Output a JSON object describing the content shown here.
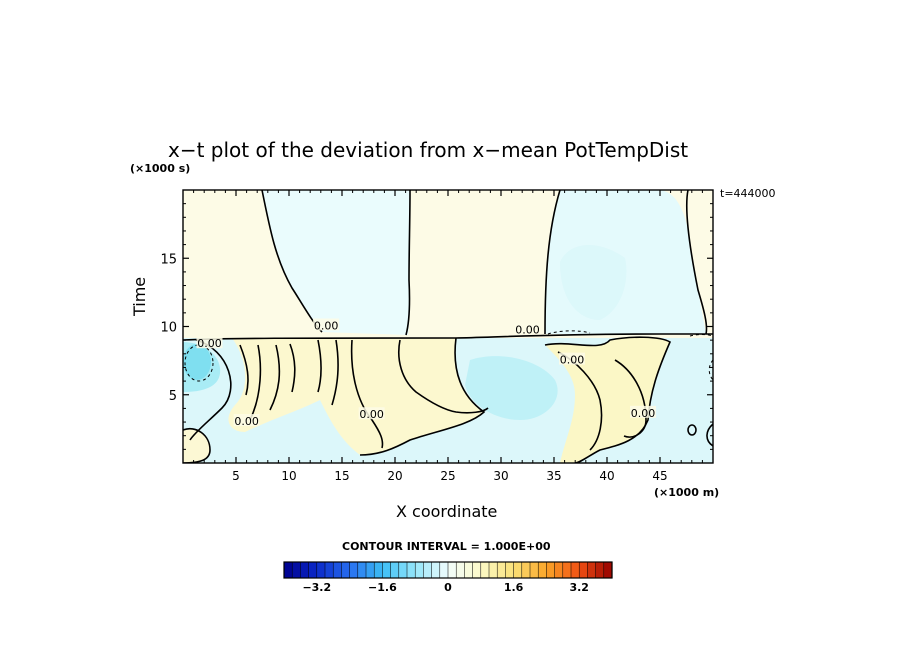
{
  "chart_data": {
    "type": "heatmap",
    "title": "x−t plot of the deviation from x−mean PotTempDist",
    "xlabel": "X coordinate",
    "ylabel": "Time",
    "x_unit_label": "(×1000 m)",
    "y_unit_label": "(×1000 s)",
    "timestamp": "t=444000",
    "xlim": [
      0,
      50
    ],
    "ylim": [
      0,
      20
    ],
    "x_ticks": [
      5,
      10,
      15,
      20,
      25,
      30,
      35,
      40,
      45
    ],
    "x_tick_labels": [
      "5",
      "10",
      "15",
      "20",
      "25",
      "30",
      "35",
      "40",
      "45"
    ],
    "y_ticks": [
      5,
      10,
      15
    ],
    "y_tick_labels": [
      "5",
      "10",
      "15"
    ],
    "contour_interval_text": "CONTOUR INTERVAL = 1.000E+00",
    "contour_labels": [
      {
        "text": "0.00",
        "x": 13.5,
        "y": 10.0
      },
      {
        "text": "0.00",
        "x": 32.5,
        "y": 9.7
      },
      {
        "text": "0.00",
        "x": 2.5,
        "y": 8.7
      },
      {
        "text": "0.00",
        "x": 36.7,
        "y": 7.5
      },
      {
        "text": "0.00",
        "x": 6.0,
        "y": 3.0
      },
      {
        "text": "0.00",
        "x": 17.8,
        "y": 3.5
      },
      {
        "text": "0.00",
        "x": 43.4,
        "y": 3.6
      }
    ],
    "colorbar": {
      "min": -4,
      "max": 4,
      "step": 0.2,
      "tick_values": [
        -3.2,
        -1.6,
        0,
        1.6,
        3.2
      ],
      "tick_labels": [
        "−3.2",
        "−1.6",
        "0",
        "1.6",
        "3.2"
      ]
    },
    "regions": [
      {
        "kind": "warm",
        "value": 0.2,
        "description": "upper background"
      },
      {
        "kind": "cool",
        "value": -0.3,
        "description": "plumes / lower band"
      },
      {
        "kind": "cool",
        "value": -1.2,
        "description": "strong cool core x~2,t~7"
      }
    ]
  }
}
